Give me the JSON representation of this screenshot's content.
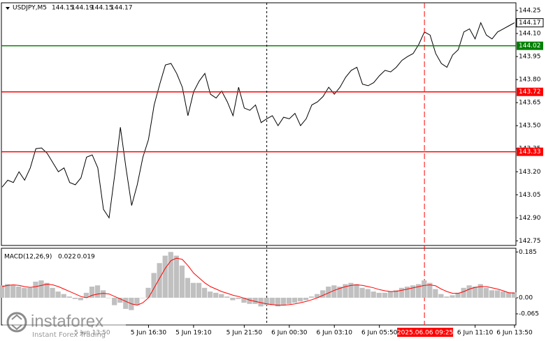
{
  "header": {
    "symbol": "USDJPY,M5",
    "ohlc": [
      144.15,
      144.19,
      144.15,
      144.17
    ]
  },
  "watermark": {
    "brand": "instaforex",
    "slogan": "Instant Forex Trading"
  },
  "chart_data": [
    {
      "type": "line",
      "series": [
        {
          "name": "USDJPY,M5",
          "color": "#000000",
          "values": [
            143.1,
            143.145,
            143.13,
            143.2,
            143.145,
            143.225,
            143.35,
            143.355,
            143.32,
            143.26,
            143.2,
            143.225,
            143.13,
            143.115,
            143.16,
            143.295,
            143.31,
            143.225,
            142.955,
            142.9,
            143.18,
            143.49,
            143.225,
            142.98,
            143.115,
            143.295,
            143.41,
            143.635,
            143.77,
            143.895,
            143.905,
            143.84,
            143.75,
            143.565,
            143.72,
            143.79,
            143.84,
            143.705,
            143.68,
            143.725,
            143.655,
            143.565,
            143.75,
            143.615,
            143.6,
            143.635,
            143.52,
            143.545,
            143.565,
            143.5,
            143.555,
            143.545,
            143.58,
            143.5,
            143.545,
            143.635,
            143.655,
            143.69,
            143.75,
            143.705,
            143.75,
            143.815,
            143.86,
            143.88,
            143.77,
            143.76,
            143.78,
            143.825,
            143.86,
            143.85,
            143.88,
            143.925,
            143.95,
            143.97,
            144.03,
            144.11,
            144.09,
            143.97,
            143.905,
            143.88,
            143.96,
            143.995,
            144.11,
            144.13,
            144.065,
            144.17,
            144.09,
            144.065,
            144.11,
            144.13,
            144.15,
            144.17
          ]
        }
      ],
      "ylim": [
        142.72,
        144.3
      ],
      "yticks": [
        144.25,
        {
          "value": 144.1,
          "label": "144.10"
        },
        143.95,
        {
          "value": 143.8,
          "label": "143.80"
        },
        143.65,
        {
          "value": 143.5,
          "label": "143.50"
        },
        143.35,
        {
          "value": 143.2,
          "label": "143.20"
        },
        143.05,
        {
          "value": 142.9,
          "label": "142.90"
        },
        142.75
      ],
      "levels": [
        {
          "value": 144.02,
          "color": "#008000"
        },
        {
          "value": 143.72,
          "color": "#ff0000"
        },
        {
          "value": 143.33,
          "color": "#ff0000"
        }
      ],
      "xticks": [
        {
          "value": 16,
          "label": "5 Jun 13:50"
        },
        {
          "value": 26,
          "label": "5 Jun 16:30"
        },
        {
          "value": 34,
          "label": "5 Jun 19:10"
        },
        {
          "value": 43,
          "label": "5 Jun 21:50"
        },
        {
          "value": 51,
          "label": "6 Jun 00:30"
        },
        {
          "value": 59,
          "label": "6 Jun 03:10"
        },
        {
          "value": 67,
          "label": "6 Jun 05:50"
        },
        {
          "value": 84,
          "label": "6 Jun 11:10"
        },
        {
          "value": 91,
          "label": "6 Jun 13:50"
        }
      ],
      "cursor": {
        "value": 75,
        "label": "2025.06.06 09:25",
        "color": "#ff0000"
      },
      "separators": [
        47
      ]
    },
    {
      "type": "macd",
      "title": "MACD(12,26,9)",
      "readout": [
        0.022,
        0.019
      ],
      "series": [
        {
          "name": "MACD",
          "color": "#c0c0c0",
          "values": [
            0.05,
            0.055,
            0.05,
            0.045,
            0.04,
            0.04,
            0.065,
            0.07,
            0.06,
            0.04,
            0.025,
            0.015,
            0.005,
            -0.005,
            -0.01,
            0.02,
            0.045,
            0.05,
            0.03,
            0.0,
            -0.03,
            -0.02,
            -0.045,
            -0.05,
            -0.03,
            0.0,
            0.04,
            0.1,
            0.14,
            0.17,
            0.185,
            0.17,
            0.13,
            0.08,
            0.06,
            0.06,
            0.04,
            0.025,
            0.02,
            0.015,
            0.005,
            -0.01,
            -0.005,
            -0.02,
            -0.025,
            -0.025,
            -0.035,
            -0.03,
            -0.03,
            -0.035,
            -0.03,
            -0.025,
            -0.02,
            -0.015,
            -0.01,
            0.005,
            0.015,
            0.03,
            0.045,
            0.05,
            0.045,
            0.055,
            0.06,
            0.055,
            0.04,
            0.035,
            0.025,
            0.02,
            0.02,
            0.025,
            0.03,
            0.04,
            0.045,
            0.05,
            0.055,
            0.07,
            0.06,
            0.035,
            0.015,
            0.005,
            0.01,
            0.02,
            0.04,
            0.05,
            0.045,
            0.055,
            0.04,
            0.03,
            0.03,
            0.025,
            0.022,
            0.022
          ]
        },
        {
          "name": "Signal",
          "color": "#ff0000",
          "values": [
            0.045,
            0.05,
            0.052,
            0.05,
            0.045,
            0.042,
            0.045,
            0.05,
            0.055,
            0.052,
            0.045,
            0.035,
            0.025,
            0.015,
            0.005,
            0.0,
            0.01,
            0.015,
            0.018,
            0.015,
            0.005,
            -0.005,
            -0.015,
            -0.025,
            -0.03,
            -0.02,
            0.0,
            0.04,
            0.08,
            0.12,
            0.15,
            0.16,
            0.155,
            0.13,
            0.1,
            0.08,
            0.06,
            0.045,
            0.035,
            0.025,
            0.018,
            0.01,
            0.005,
            -0.002,
            -0.01,
            -0.015,
            -0.02,
            -0.025,
            -0.028,
            -0.03,
            -0.03,
            -0.028,
            -0.025,
            -0.02,
            -0.015,
            -0.008,
            0.0,
            0.01,
            0.02,
            0.03,
            0.038,
            0.045,
            0.05,
            0.052,
            0.05,
            0.045,
            0.04,
            0.033,
            0.028,
            0.025,
            0.026,
            0.03,
            0.035,
            0.04,
            0.045,
            0.05,
            0.052,
            0.048,
            0.035,
            0.025,
            0.018,
            0.018,
            0.025,
            0.035,
            0.042,
            0.045,
            0.045,
            0.04,
            0.035,
            0.028,
            0.02,
            0.019
          ]
        }
      ],
      "ylim": [
        -0.11,
        0.2
      ],
      "yticks": [
        0.185,
        {
          "value": 0,
          "label": "0.00"
        },
        -0.065
      ]
    }
  ]
}
